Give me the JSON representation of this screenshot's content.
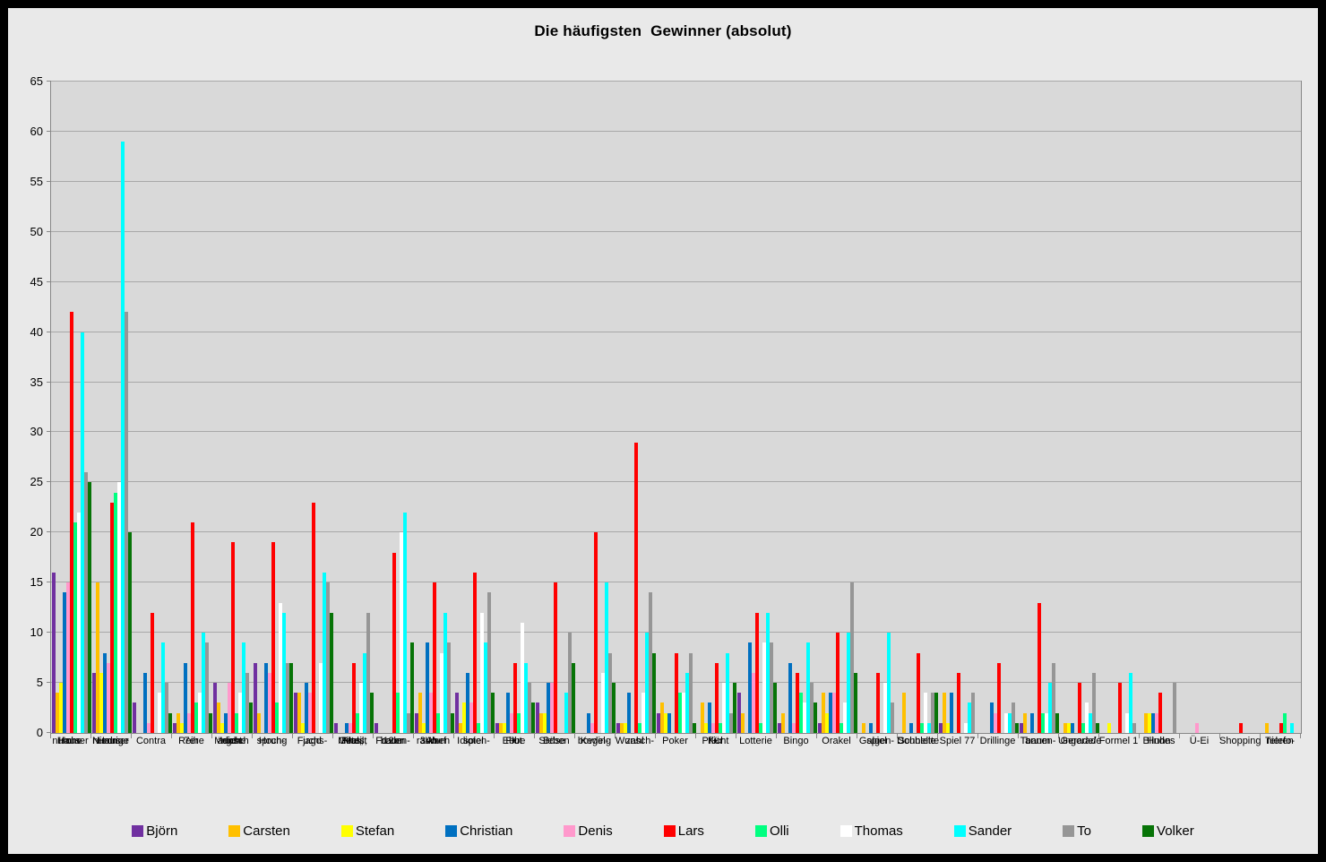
{
  "title": "Die häufigsten  Gewinner (absolut)",
  "colors": {
    "frame": "#000000",
    "canvas_bg": "#E9E9E9",
    "plot_bg": "#D9D9D9",
    "gridline": "#A8A8A8",
    "axis": "#888888"
  },
  "chart_data": {
    "type": "bar",
    "title": "Die häufigsten  Gewinner (absolut)",
    "xlabel": "",
    "ylabel": "",
    "ylim": [
      0,
      65
    ],
    "ytick_step": 5,
    "grid": true,
    "legend_position": "bottom",
    "categories": [
      [
        "Hohe",
        "Haus-",
        "nummer"
      ],
      [
        "Niedrige",
        "Haus-",
        "nummer"
      ],
      [
        "Contra"
      ],
      [
        "7er",
        "Reihe"
      ],
      [
        "Mensch",
        "ärgere",
        "dich",
        "nicht"
      ],
      [
        "Hoch-",
        "sprung"
      ],
      [
        "Fuchs-",
        "jagd"
      ],
      [
        "Plus,",
        "Minus,",
        "Mal,",
        "Geteilt"
      ],
      [
        "12er",
        "Freden-",
        "baum"
      ],
      [
        "Ab-",
        "räumen",
        "3Wurf"
      ],
      [
        "Idioten-",
        "spiel"
      ],
      [
        "Ebbe",
        "+",
        "Flut"
      ],
      [
        "Böse",
        "Sieben"
      ],
      [
        "Kegel-",
        "bowling"
      ],
      [
        "Wunsch-",
        "zahl"
      ],
      [
        "Poker"
      ],
      [
        "Pflicht",
        "+",
        "Kür"
      ],
      [
        "Lotterie"
      ],
      [
        "Bingo"
      ],
      [
        "Orakel"
      ],
      [
        "Galgen-",
        "spiel"
      ],
      [
        "Schnelle",
        "Doublette"
      ],
      [
        "Spiel 77"
      ],
      [
        "Drillinge"
      ],
      [
        "Tannen-",
        "baum"
      ],
      [
        "Gerade/",
        "Ungerade"
      ],
      [
        "Formel 1"
      ],
      [
        "Blindes",
        "Huhn"
      ],
      [
        "Ü-Ei"
      ],
      [
        "Shopping"
      ],
      [
        "Telefo-",
        "nieren"
      ]
    ],
    "series": [
      {
        "name": "Björn",
        "color": "#7030A0",
        "values": [
          16,
          6,
          3,
          1,
          5,
          7,
          4,
          1,
          1,
          2,
          4,
          1,
          3,
          0,
          1,
          2,
          0,
          4,
          1,
          1,
          0,
          0,
          1,
          0,
          1,
          0,
          0,
          0,
          0,
          0,
          0
        ]
      },
      {
        "name": "Carsten",
        "color": "#FFC000",
        "values": [
          4,
          15,
          0,
          2,
          3,
          2,
          4,
          0,
          0,
          4,
          1,
          1,
          2,
          0,
          1,
          3,
          3,
          2,
          2,
          4,
          1,
          4,
          4,
          0,
          2,
          1,
          0,
          2,
          0,
          0,
          1
        ]
      },
      {
        "name": "Stefan",
        "color": "#FFFF00",
        "values": [
          5,
          6,
          0,
          1,
          1,
          0,
          1,
          0,
          0,
          1,
          3,
          1,
          2,
          0,
          1,
          2,
          1,
          0,
          0,
          2,
          0,
          0,
          1,
          0,
          0,
          1,
          1,
          2,
          0,
          0,
          0
        ]
      },
      {
        "name": "Christian",
        "color": "#0070C0",
        "values": [
          14,
          8,
          6,
          7,
          2,
          7,
          5,
          1,
          0,
          9,
          6,
          4,
          5,
          2,
          4,
          2,
          3,
          9,
          7,
          4,
          1,
          1,
          4,
          3,
          2,
          1,
          0,
          2,
          0,
          0,
          0
        ]
      },
      {
        "name": "Denis",
        "color": "#FF99CC",
        "values": [
          15,
          7,
          1,
          2,
          5,
          6,
          4,
          1,
          0,
          4,
          3,
          2,
          5,
          1,
          0,
          0,
          1,
          6,
          1,
          4,
          0,
          0,
          0,
          2,
          0,
          0,
          0,
          2,
          1,
          0,
          0
        ]
      },
      {
        "name": "Lars",
        "color": "#FF0000",
        "values": [
          42,
          23,
          12,
          21,
          19,
          19,
          23,
          7,
          18,
          15,
          16,
          7,
          15,
          20,
          29,
          8,
          7,
          12,
          6,
          10,
          6,
          8,
          6,
          7,
          13,
          5,
          5,
          4,
          0,
          1,
          1
        ]
      },
      {
        "name": "Olli",
        "color": "#00FF80",
        "values": [
          21,
          24,
          0,
          3,
          2,
          3,
          0,
          2,
          4,
          2,
          1,
          2,
          0,
          0,
          1,
          4,
          1,
          1,
          4,
          1,
          0,
          1,
          0,
          0,
          2,
          1,
          0,
          0,
          0,
          0,
          2
        ]
      },
      {
        "name": "Thomas",
        "color": "#FFFFFF",
        "values": [
          22,
          25,
          4,
          4,
          4,
          13,
          7,
          5,
          20,
          8,
          12,
          11,
          0,
          6,
          4,
          4,
          5,
          9,
          3,
          3,
          5,
          4,
          1,
          2,
          2,
          3,
          2,
          0,
          0,
          0,
          0
        ]
      },
      {
        "name": "Sander",
        "color": "#00FFFF",
        "values": [
          40,
          59,
          9,
          10,
          9,
          12,
          16,
          8,
          22,
          12,
          9,
          7,
          4,
          15,
          10,
          6,
          8,
          12,
          9,
          10,
          10,
          1,
          3,
          2,
          5,
          2,
          6,
          0,
          0,
          0,
          1
        ]
      },
      {
        "name": "To",
        "color": "#969696",
        "values": [
          26,
          42,
          5,
          9,
          6,
          7,
          15,
          12,
          2,
          9,
          14,
          5,
          10,
          8,
          14,
          8,
          2,
          9,
          5,
          15,
          3,
          4,
          4,
          3,
          7,
          6,
          1,
          5,
          0,
          0,
          0
        ]
      },
      {
        "name": "Volker",
        "color": "#077407",
        "values": [
          25,
          20,
          2,
          2,
          3,
          7,
          12,
          4,
          9,
          2,
          4,
          3,
          7,
          5,
          8,
          1,
          5,
          5,
          3,
          6,
          0,
          4,
          0,
          1,
          2,
          1,
          0,
          0,
          0,
          0,
          0
        ]
      }
    ]
  }
}
